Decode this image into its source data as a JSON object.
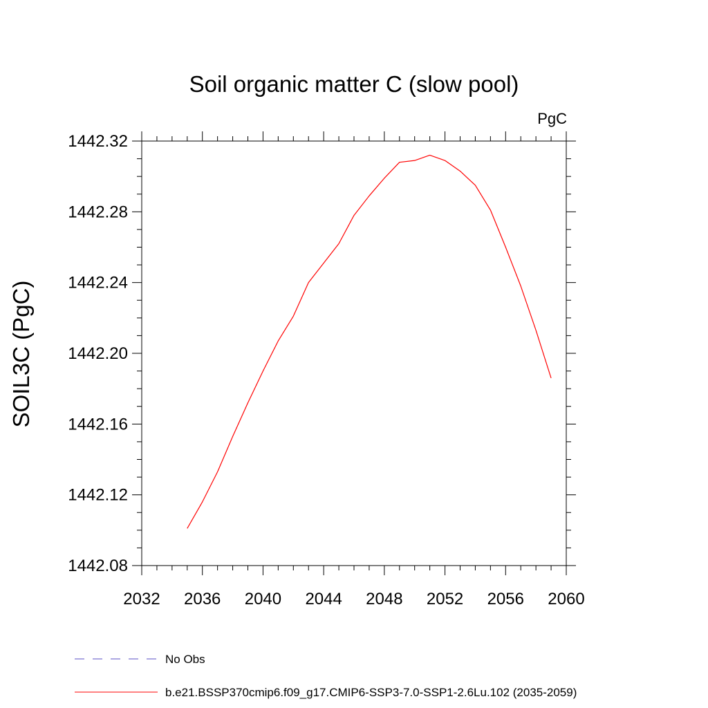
{
  "chart_data": {
    "type": "line",
    "title": "Soil organic matter C (slow pool)",
    "units_label": "PgC",
    "ylabel": "SOIL3C  (PgC)",
    "xlabel": "",
    "xlim": [
      2032,
      2060
    ],
    "ylim": [
      1442.08,
      1442.32
    ],
    "x_ticks": [
      2032,
      2036,
      2040,
      2044,
      2048,
      2052,
      2056,
      2060
    ],
    "x_tick_labels": [
      "2032",
      "2036",
      "2040",
      "2044",
      "2048",
      "2052",
      "2056",
      "2060"
    ],
    "y_ticks": [
      1442.08,
      1442.12,
      1442.16,
      1442.2,
      1442.24,
      1442.28,
      1442.32
    ],
    "y_tick_labels": [
      "1442.08",
      "1442.12",
      "1442.16",
      "1442.20",
      "1442.24",
      "1442.28",
      "1442.32"
    ],
    "grid": false,
    "series": [
      {
        "name": "b.e21.BSSP370cmip6.f09_g17.CMIP6-SSP3-7.0-SSP1-2.6Lu.102 (2035-2059)",
        "color": "#ff0000",
        "style": "solid",
        "x": [
          2035,
          2036,
          2037,
          2038,
          2039,
          2040,
          2041,
          2042,
          2043,
          2044,
          2045,
          2046,
          2047,
          2048,
          2049,
          2050,
          2051,
          2052,
          2053,
          2054,
          2055,
          2056,
          2057,
          2058,
          2059
        ],
        "values": [
          1442.101,
          1442.116,
          1442.133,
          1442.153,
          1442.172,
          1442.19,
          1442.207,
          1442.221,
          1442.24,
          1442.251,
          1442.262,
          1442.278,
          1442.289,
          1442.299,
          1442.308,
          1442.309,
          1442.312,
          1442.309,
          1442.303,
          1442.295,
          1442.281,
          1442.26,
          1442.238,
          1442.213,
          1442.186
        ]
      }
    ],
    "legend": [
      {
        "label": "No Obs",
        "color": "#5a4fc4",
        "style": "dashed"
      },
      {
        "label": "b.e21.BSSP370cmip6.f09_g17.CMIP6-SSP3-7.0-SSP1-2.6Lu.102 (2035-2059)",
        "color": "#ff0000",
        "style": "solid"
      }
    ],
    "legend_placement": "bottom"
  }
}
